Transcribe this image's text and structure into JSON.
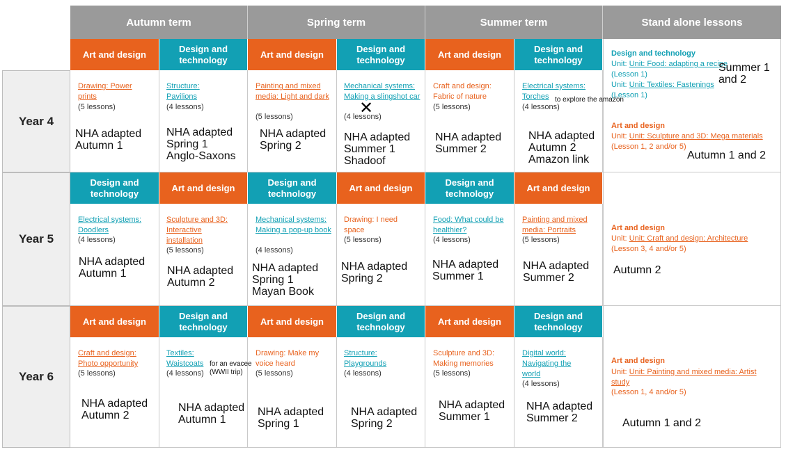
{
  "terms": [
    "Autumn term",
    "Spring term",
    "Summer term",
    "Stand alone lessons"
  ],
  "subjects": {
    "art": "Art and design",
    "dt": "Design and technology"
  },
  "years": [
    "Year 4",
    "Year 5",
    "Year 6"
  ],
  "rows": [
    {
      "cells": [
        {
          "unit": "Drawing: Power prints",
          "lessons": "(5 lessons)",
          "note": "NHA adapted\nAutumn 1"
        },
        {
          "unit": "Structure: Pavilions",
          "lessons": "(4 lessons)",
          "note": "NHA adapted\nSpring 1\nAnglo-Saxons"
        },
        {
          "unit": "Painting and mixed media: Light and dark",
          "lessons": "(5 lessons)",
          "note": "NHA adapted\nSpring 2"
        },
        {
          "unit": "Mechanical systems: Making a slingshot car",
          "lessons": "(4 lessons)",
          "note": "NHA adapted\nSummer 1\nShadoof"
        },
        {
          "unit": "Craft and design: Fabric of nature",
          "lessons": "(5 lessons)",
          "note": "NHA adapted\nSummer 2"
        },
        {
          "unit": "Electrical systems: Torches",
          "lessons": "(4 lessons)",
          "note": "NHA adapted\nAutumn 2\nAmazon link",
          "extra": "to explore the amazon"
        }
      ],
      "standalone": {
        "dt_title": "Design and technology",
        "dt_line1": "Unit: Food: adapting a recipe",
        "dt_line2": "(Lesson 1)",
        "dt_line3": "Unit: Textiles: Fastenings",
        "dt_line4": "(Lesson 1)",
        "dt_note": "Summer 1\nand 2",
        "art_title": "Art and design",
        "art_line1": "Unit: Sculpture and 3D: Mega materials",
        "art_line2": "(Lesson 1, 2 and/or 5)",
        "art_note": "Autumn 1 and 2"
      }
    },
    {
      "cells": [
        {
          "unit": "Electrical systems: Doodlers",
          "lessons": "(4 lessons)",
          "note": "NHA adapted\nAutumn 1"
        },
        {
          "unit": "Sculpture and 3D: Interactive installation",
          "lessons": "(5 lessons)",
          "note": "NHA adapted\nAutumn 2"
        },
        {
          "unit": "Mechanical systems: Making a pop-up book",
          "lessons": "(4 lessons)",
          "note": "NHA adapted\nSpring 1\nMayan Book"
        },
        {
          "unit": "Drawing: I need space",
          "lessons": "(5 lessons)",
          "note": "NHA adapted\nSpring 2"
        },
        {
          "unit": "Food: What could be healthier?",
          "lessons": "(4 lessons)",
          "note": "NHA adapted\nSummer 1"
        },
        {
          "unit": "Painting and mixed media: Portraits",
          "lessons": "(5 lessons)",
          "note": "NHA adapted\nSummer 2"
        }
      ],
      "standalone": {
        "art_title": "Art and design",
        "art_line1": "Unit: Craft and design: Architecture",
        "art_line2": "(Lesson 3, 4 and/or 5)",
        "art_note": "Autumn 2"
      }
    },
    {
      "cells": [
        {
          "unit": "Craft and design: Photo opportunity",
          "lessons": "(5 lessons)",
          "note": "NHA adapted\nAutumn 2"
        },
        {
          "unit": "Textiles: Waistcoats",
          "lessons": "(4 lessons)",
          "note": "NHA adapted\nAutumn 1",
          "extra": "for an evacee\n(WWII trip)"
        },
        {
          "unit": "Drawing: Make my voice heard",
          "lessons": "(5 lessons)",
          "note": "NHA adapted\nSpring 1"
        },
        {
          "unit": "Structure: Playgrounds",
          "lessons": "(4 lessons)",
          "note": "NHA adapted\nSpring 2"
        },
        {
          "unit": "Sculpture and 3D: Making memories",
          "lessons": "(5 lessons)",
          "note": "NHA adapted\nSummer 1"
        },
        {
          "unit": "Digital world: Navigating the world",
          "lessons": "(4 lessons)",
          "note": "NHA adapted\nSummer 2"
        }
      ],
      "standalone": {
        "art_title": "Art and design",
        "art_line1": "Unit: Painting and mixed media: Artist study",
        "art_line2": "(Lesson 1, 4 and/or 5)",
        "art_note": "Autumn 1 and 2"
      }
    }
  ],
  "colors": {
    "art": "#e8621e",
    "dt": "#12a0b4",
    "header": "#9a9a9a"
  }
}
